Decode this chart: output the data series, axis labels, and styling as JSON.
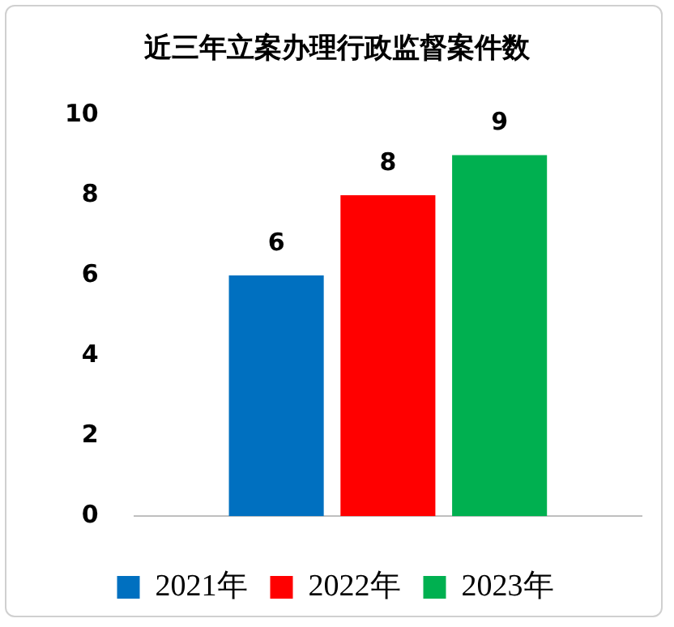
{
  "chart_data": {
    "type": "bar",
    "title": "近三年立案办理行政监督案件数",
    "categories": [
      null
    ],
    "series": [
      {
        "name": "2021年",
        "color": "#0070c0",
        "values": [
          6
        ]
      },
      {
        "name": "2022年",
        "color": "#ff0000",
        "values": [
          8
        ]
      },
      {
        "name": "2023年",
        "color": "#00b050",
        "values": [
          9
        ]
      }
    ],
    "ylim": [
      0,
      10
    ],
    "yticks": [
      0,
      2,
      4,
      6,
      8,
      10
    ],
    "grid": false,
    "legend": "bottom",
    "data_labels": true
  }
}
